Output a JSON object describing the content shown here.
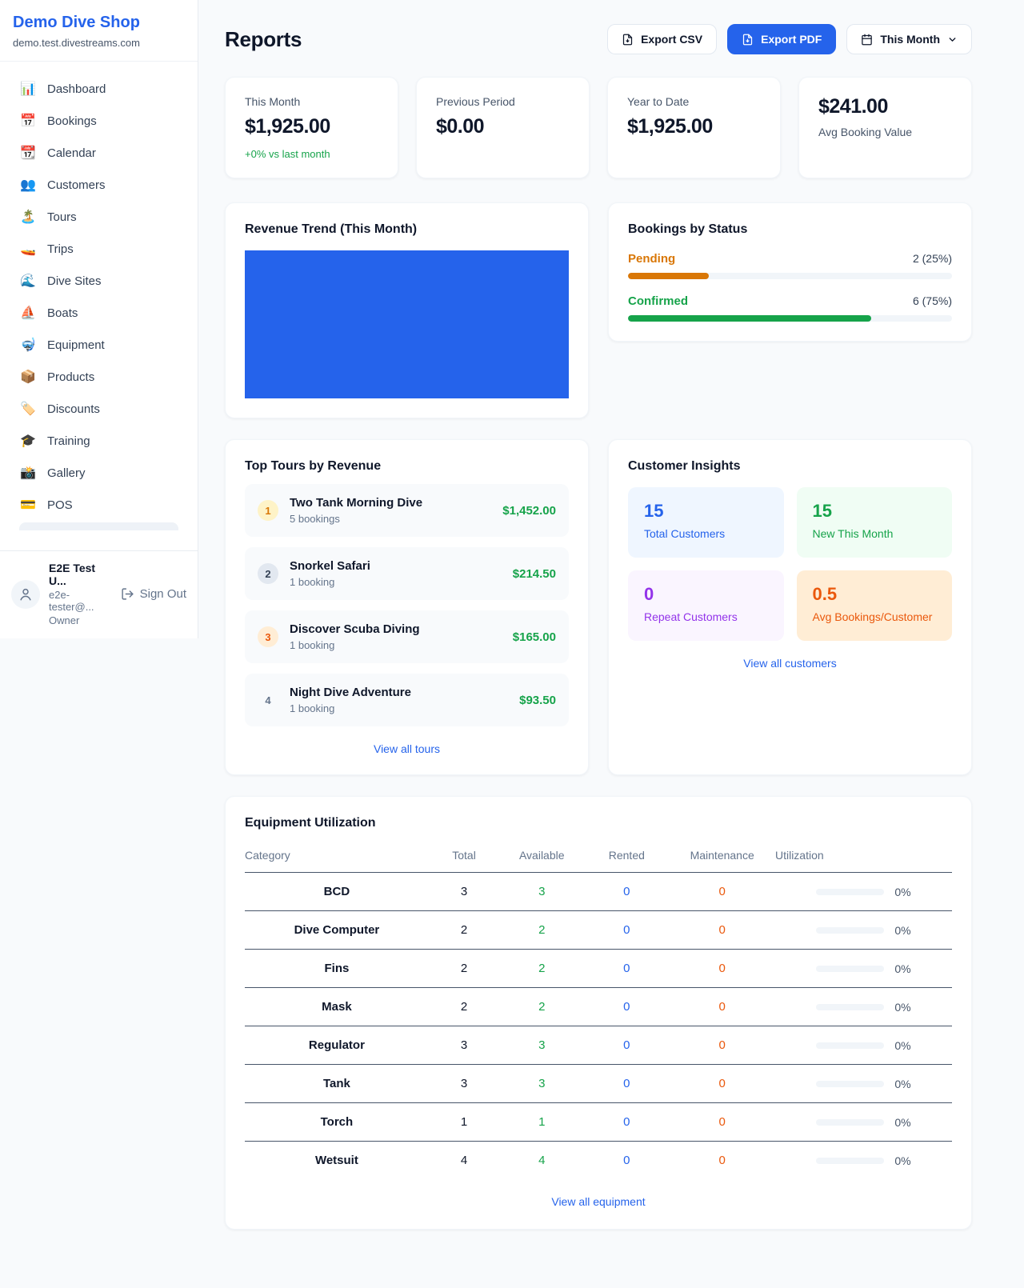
{
  "colors": {
    "accent_blue": "#2563eb",
    "positive_green": "#16a34a",
    "pending_orange": "#d97706",
    "maintenance_orange": "#ea580c",
    "repeat_purple": "#9333ea",
    "page_bg": "#f8fafc"
  },
  "sidebar": {
    "brand": {
      "name": "Demo Dive Shop",
      "domain": "demo.test.divestreams.com"
    },
    "items": [
      {
        "icon": "📊",
        "label": "Dashboard"
      },
      {
        "icon": "📅",
        "label": "Bookings"
      },
      {
        "icon": "📆",
        "label": "Calendar"
      },
      {
        "icon": "👥",
        "label": "Customers"
      },
      {
        "icon": "🏝️",
        "label": "Tours"
      },
      {
        "icon": "🚤",
        "label": "Trips"
      },
      {
        "icon": "🌊",
        "label": "Dive Sites"
      },
      {
        "icon": "⛵",
        "label": "Boats"
      },
      {
        "icon": "🤿",
        "label": "Equipment"
      },
      {
        "icon": "📦",
        "label": "Products"
      },
      {
        "icon": "🏷️",
        "label": "Discounts"
      },
      {
        "icon": "🎓",
        "label": "Training"
      },
      {
        "icon": "📸",
        "label": "Gallery"
      },
      {
        "icon": "💳",
        "label": "POS"
      }
    ],
    "user": {
      "name": "E2E Test U...",
      "email": "e2e-tester@...",
      "role": "Owner",
      "sign_out_label": "Sign Out"
    }
  },
  "header": {
    "title": "Reports",
    "export_csv_label": "Export CSV",
    "export_pdf_label": "Export PDF",
    "period_label": "This Month"
  },
  "stats": [
    {
      "label": "This Month",
      "value": "$1,925.00",
      "delta": "+0% vs last month"
    },
    {
      "label": "Previous Period",
      "value": "$0.00"
    },
    {
      "label": "Year to Date",
      "value": "$1,925.00"
    },
    {
      "label": "Avg Booking Value",
      "value": "$241.00"
    }
  ],
  "revenue_trend": {
    "title": "Revenue Trend (This Month)"
  },
  "chart_data": {
    "type": "bar",
    "title": "Revenue Trend (This Month)",
    "categories": [
      "This Month"
    ],
    "values": [
      1925.0
    ],
    "bar_color": "#2563eb",
    "note": "single solid full-width bar, no axes or labels shown"
  },
  "bookings_by_status": {
    "title": "Bookings by Status",
    "rows": [
      {
        "label": "Pending",
        "count": "2 (25%)",
        "pct": 25
      },
      {
        "label": "Confirmed",
        "count": "6 (75%)",
        "pct": 75
      }
    ]
  },
  "top_tours": {
    "title": "Top Tours by Revenue",
    "items": [
      {
        "rank": "1",
        "name": "Two Tank Morning Dive",
        "bookings": "5 bookings",
        "revenue": "$1,452.00"
      },
      {
        "rank": "2",
        "name": "Snorkel Safari",
        "bookings": "1 booking",
        "revenue": "$214.50"
      },
      {
        "rank": "3",
        "name": "Discover Scuba Diving",
        "bookings": "1 booking",
        "revenue": "$165.00"
      },
      {
        "rank": "4",
        "name": "Night Dive Adventure",
        "bookings": "1 booking",
        "revenue": "$93.50"
      }
    ],
    "view_all_label": "View all tours"
  },
  "customer_insights": {
    "title": "Customer Insights",
    "tiles": [
      {
        "value": "15",
        "label": "Total Customers"
      },
      {
        "value": "15",
        "label": "New This Month"
      },
      {
        "value": "0",
        "label": "Repeat Customers"
      },
      {
        "value": "0.5",
        "label": "Avg Bookings/Customer"
      }
    ],
    "view_all_label": "View all customers"
  },
  "equipment": {
    "title": "Equipment Utilization",
    "columns": [
      "Category",
      "Total",
      "Available",
      "Rented",
      "Maintenance",
      "Utilization"
    ],
    "rows": [
      {
        "category": "BCD",
        "total": "3",
        "available": "3",
        "rented": "0",
        "maintenance": "0",
        "utilization": "0%",
        "util_pct": 0
      },
      {
        "category": "Dive Computer",
        "total": "2",
        "available": "2",
        "rented": "0",
        "maintenance": "0",
        "utilization": "0%",
        "util_pct": 0
      },
      {
        "category": "Fins",
        "total": "2",
        "available": "2",
        "rented": "0",
        "maintenance": "0",
        "utilization": "0%",
        "util_pct": 0
      },
      {
        "category": "Mask",
        "total": "2",
        "available": "2",
        "rented": "0",
        "maintenance": "0",
        "utilization": "0%",
        "util_pct": 0
      },
      {
        "category": "Regulator",
        "total": "3",
        "available": "3",
        "rented": "0",
        "maintenance": "0",
        "utilization": "0%",
        "util_pct": 0
      },
      {
        "category": "Tank",
        "total": "3",
        "available": "3",
        "rented": "0",
        "maintenance": "0",
        "utilization": "0%",
        "util_pct": 0
      },
      {
        "category": "Torch",
        "total": "1",
        "available": "1",
        "rented": "0",
        "maintenance": "0",
        "utilization": "0%",
        "util_pct": 0
      },
      {
        "category": "Wetsuit",
        "total": "4",
        "available": "4",
        "rented": "0",
        "maintenance": "0",
        "utilization": "0%",
        "util_pct": 0
      }
    ],
    "view_all_label": "View all equipment"
  }
}
